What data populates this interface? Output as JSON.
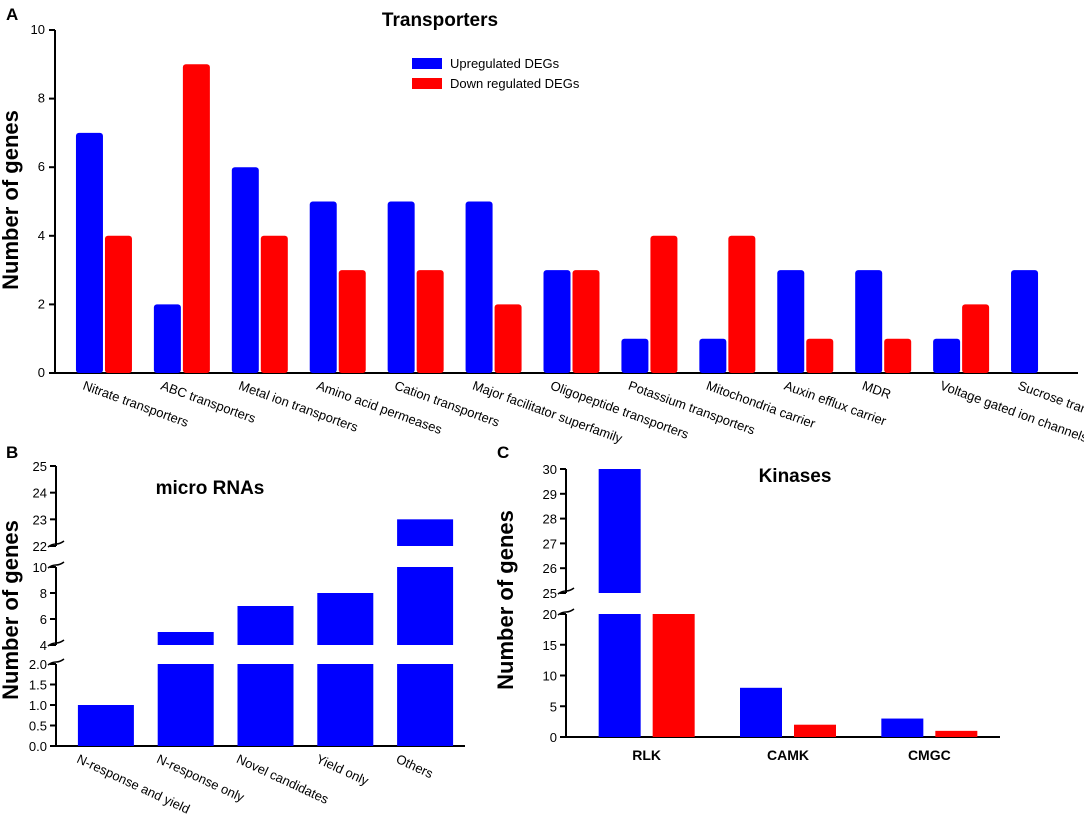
{
  "colors": {
    "up": "#0000ff",
    "down": "#ff0000",
    "axis": "#000000"
  },
  "chart_data": [
    {
      "panel": "A",
      "type": "bar",
      "title": "Transporters",
      "ylabel": "Number of genes",
      "xlabel": "",
      "ylim": [
        0,
        10
      ],
      "yticks": [
        "0",
        "2",
        "4",
        "6",
        "8",
        "10"
      ],
      "legend": {
        "position": "top-right"
      },
      "categories": [
        "Nitrate transporters",
        "ABC transporters",
        "Metal ion transporters",
        "Amino acid permeases",
        "Cation transporters",
        "Major facilitator superfamily",
        "Oligopeptide transporters",
        "Potassium transporters",
        "Mitochondria carrier",
        "Auxin efflux carrier",
        "MDR",
        "Voltage gated ion channels",
        "Sucrose transporters"
      ],
      "series": [
        {
          "name": "Upregulated DEGs",
          "color": "#0000ff",
          "values": [
            7,
            2,
            6,
            5,
            5,
            5,
            3,
            1,
            1,
            3,
            3,
            1,
            3
          ]
        },
        {
          "name": "Down regulated DEGs",
          "color": "#ff0000",
          "values": [
            4,
            9,
            4,
            3,
            3,
            2,
            3,
            4,
            4,
            1,
            1,
            2,
            0
          ]
        }
      ]
    },
    {
      "panel": "B",
      "type": "bar",
      "title": "micro RNAs",
      "ylabel": "Number of genes",
      "xlabel": "",
      "broken_axis": true,
      "segments": [
        {
          "range": [
            0,
            2
          ],
          "ticks": [
            "0.0",
            "0.5",
            "1.0",
            "1.5",
            "2.0"
          ]
        },
        {
          "range": [
            4,
            10
          ],
          "ticks": [
            "4",
            "6",
            "8",
            "10"
          ]
        },
        {
          "range": [
            22,
            25
          ],
          "ticks": [
            "22",
            "23",
            "24",
            "25"
          ]
        }
      ],
      "categories": [
        "N-response and yield",
        "N-response only",
        "Novel candidates",
        "Yield only",
        "Others"
      ],
      "series": [
        {
          "name": "miRNAs",
          "color": "#0000ff",
          "values": [
            1,
            5,
            7,
            8,
            23
          ]
        }
      ]
    },
    {
      "panel": "C",
      "type": "bar",
      "title": "Kinases",
      "ylabel": "Number of genes",
      "xlabel": "",
      "broken_axis": true,
      "segments": [
        {
          "range": [
            0,
            20
          ],
          "ticks": [
            "0",
            "5",
            "10",
            "15",
            "20"
          ]
        },
        {
          "range": [
            25,
            30
          ],
          "ticks": [
            "25",
            "26",
            "27",
            "28",
            "29",
            "30"
          ]
        }
      ],
      "categories": [
        "RLK",
        "CAMK",
        "CMGC"
      ],
      "series": [
        {
          "name": "Upregulated DEGs",
          "color": "#0000ff",
          "values": [
            30,
            8,
            3
          ]
        },
        {
          "name": "Down regulated DEGs",
          "color": "#ff0000",
          "values": [
            20,
            2,
            1
          ]
        }
      ]
    }
  ]
}
